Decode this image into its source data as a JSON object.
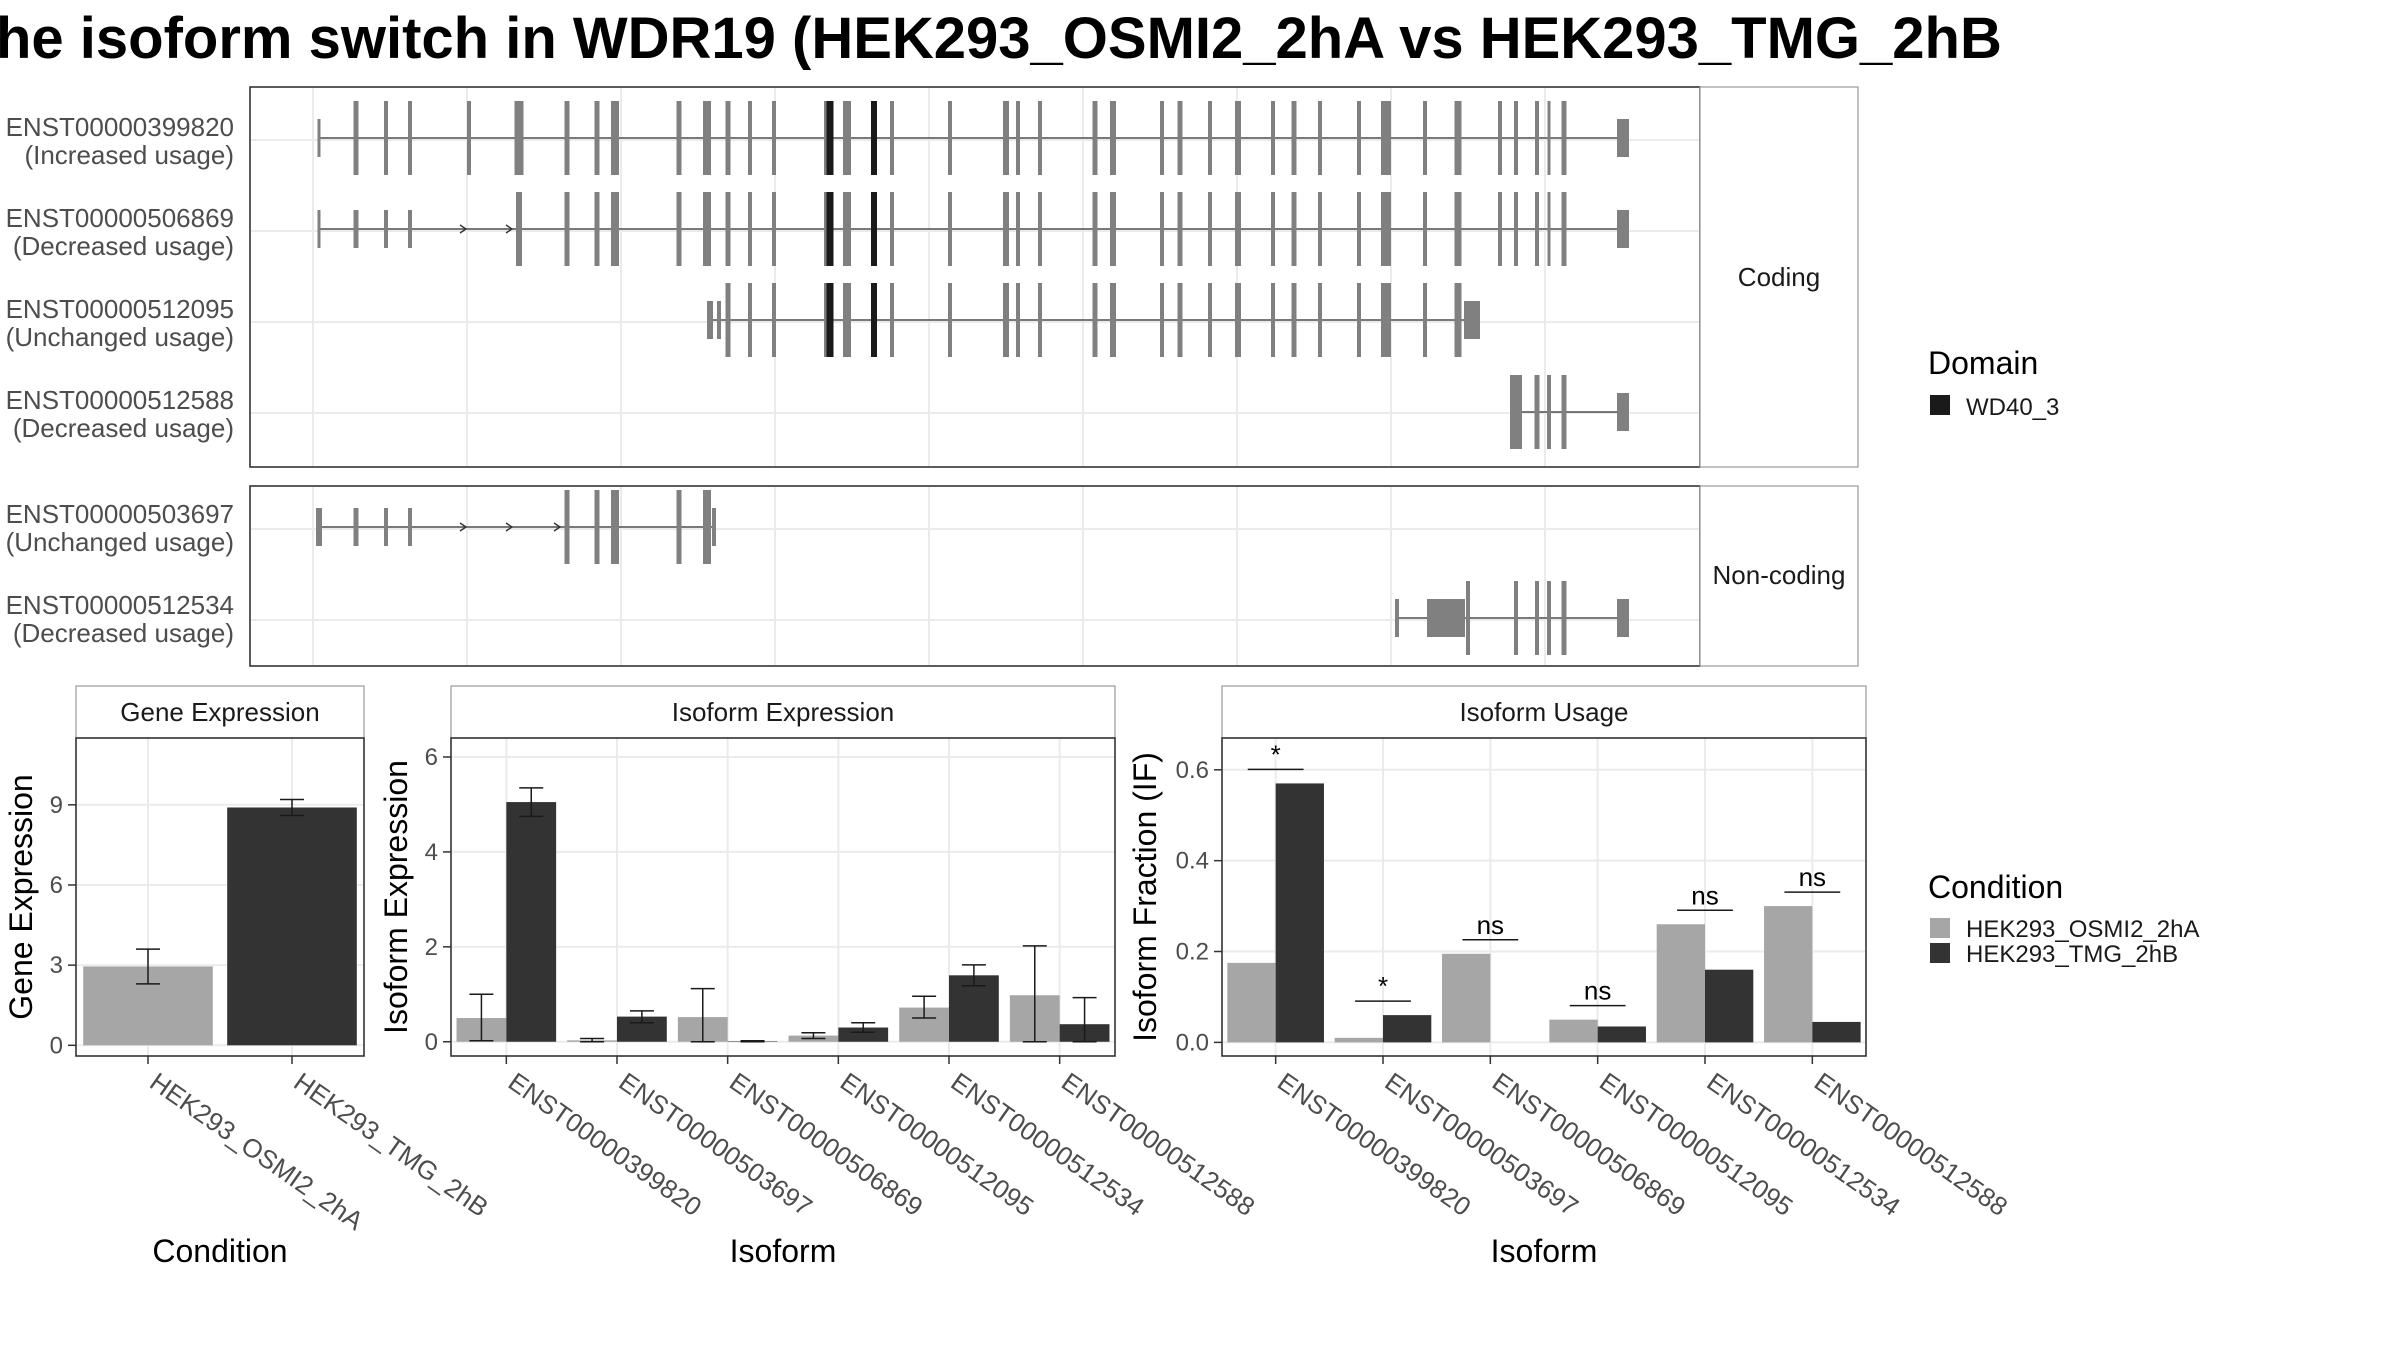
{
  "title": "he isoform switch in WDR19 (HEK293_OSMI2_2hA vs HEK293_TMG_2hB",
  "colors": {
    "condition_a": "#a6a6a6",
    "condition_b": "#333333",
    "exon": "#808080",
    "domain": "#1a1a1a",
    "grid": "#ebebeb",
    "panel_border": "#333333",
    "strip_fill": "#ffffff"
  },
  "transcripts": {
    "coding_label": "Coding",
    "noncoding_label": "Non-coding",
    "coding": [
      {
        "id": "ENST00000399820",
        "usage": "(Increased usage)"
      },
      {
        "id": "ENST00000506869",
        "usage": "(Decreased usage)"
      },
      {
        "id": "ENST00000512095",
        "usage": "(Unchanged usage)"
      },
      {
        "id": "ENST00000512588",
        "usage": "(Decreased usage)"
      }
    ],
    "noncoding": [
      {
        "id": "ENST00000503697",
        "usage": "(Unchanged usage)"
      },
      {
        "id": "ENST00000512534",
        "usage": "(Decreased usage)"
      }
    ]
  },
  "legend": {
    "domain_title": "Domain",
    "domain_item": "WD40_3",
    "condition_title": "Condition",
    "conditions": [
      "HEK293_OSMI2_2hA",
      "HEK293_TMG_2hB"
    ]
  },
  "chart_data": [
    {
      "type": "bar",
      "title": "Gene Expression",
      "xlabel": "Condition",
      "ylabel": "Gene Expression",
      "categories": [
        "HEK293_OSMI2_2hA",
        "HEK293_TMG_2hB"
      ],
      "values": [
        2.95,
        8.9
      ],
      "error": [
        [
          2.3,
          3.6
        ],
        [
          8.6,
          9.2
        ]
      ],
      "yticks": [
        0,
        3,
        6,
        9
      ],
      "ylim": [
        -0.4,
        11.5
      ]
    },
    {
      "type": "bar",
      "title": "Isoform Expression",
      "xlabel": "Isoform",
      "ylabel": "Isoform Expression",
      "categories": [
        "ENST00000399820",
        "ENST00000503697",
        "ENST00000506869",
        "ENST00000512095",
        "ENST00000512534",
        "ENST00000512588"
      ],
      "series": [
        {
          "name": "HEK293_OSMI2_2hA",
          "values": [
            0.5,
            0.03,
            0.52,
            0.13,
            0.72,
            0.98
          ],
          "error": [
            [
              0.02,
              1.0
            ],
            [
              0.0,
              0.07
            ],
            [
              0.0,
              1.12
            ],
            [
              0.07,
              0.19
            ],
            [
              0.5,
              0.96
            ],
            [
              0.0,
              2.02
            ]
          ]
        },
        {
          "name": "HEK293_TMG_2hB",
          "values": [
            5.05,
            0.53,
            0.01,
            0.3,
            1.4,
            0.37
          ],
          "error": [
            [
              4.75,
              5.35
            ],
            [
              0.4,
              0.65
            ],
            [
              0.0,
              0.02
            ],
            [
              0.2,
              0.4
            ],
            [
              1.18,
              1.62
            ],
            [
              0.0,
              0.93
            ]
          ]
        }
      ],
      "yticks": [
        0,
        2,
        4,
        6
      ],
      "ylim": [
        -0.3,
        6.4
      ]
    },
    {
      "type": "bar",
      "title": "Isoform Usage",
      "xlabel": "Isoform",
      "ylabel": "Isoform Fraction (IF)",
      "categories": [
        "ENST00000399820",
        "ENST00000503697",
        "ENST00000506869",
        "ENST00000512095",
        "ENST00000512534",
        "ENST00000512588"
      ],
      "series": [
        {
          "name": "HEK293_OSMI2_2hA",
          "values": [
            0.175,
            0.01,
            0.195,
            0.05,
            0.26,
            0.3
          ]
        },
        {
          "name": "HEK293_TMG_2hB",
          "values": [
            0.57,
            0.06,
            0.0,
            0.035,
            0.16,
            0.045
          ]
        }
      ],
      "significance": [
        "*",
        "*",
        "ns",
        "ns",
        "ns",
        "ns"
      ],
      "yticks": [
        0.0,
        0.2,
        0.4,
        0.6
      ],
      "ylim": [
        -0.03,
        0.67
      ]
    }
  ]
}
